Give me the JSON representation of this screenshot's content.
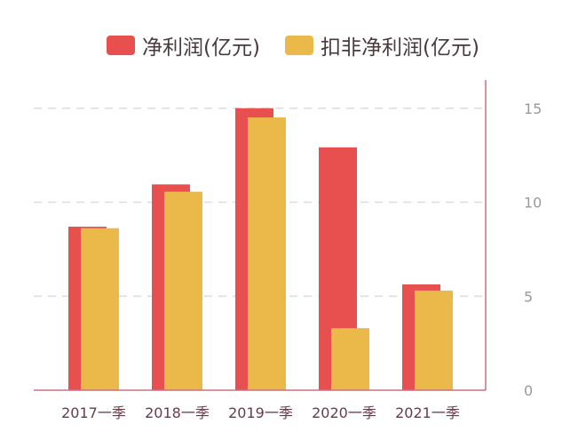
{
  "chart_data": {
    "type": "bar",
    "title": "",
    "categories": [
      "2017一季",
      "2018一季",
      "2019一季",
      "2020一季",
      "2021一季"
    ],
    "series": [
      {
        "name": "净利润(亿元)",
        "color": "#E85050",
        "values": [
          8.7,
          10.95,
          15.0,
          12.92,
          5.63
        ]
      },
      {
        "name": "扣非净利润(亿元)",
        "color": "#EBB84A",
        "values": [
          8.62,
          10.56,
          14.51,
          3.3,
          5.3
        ]
      }
    ],
    "y_ticks": [
      "0",
      "5",
      "10",
      "15"
    ],
    "ylim": [
      0,
      16.5
    ],
    "xlabel": "",
    "ylabel": "",
    "grid": true,
    "y_axis_position": "right",
    "legend_position": "top"
  }
}
